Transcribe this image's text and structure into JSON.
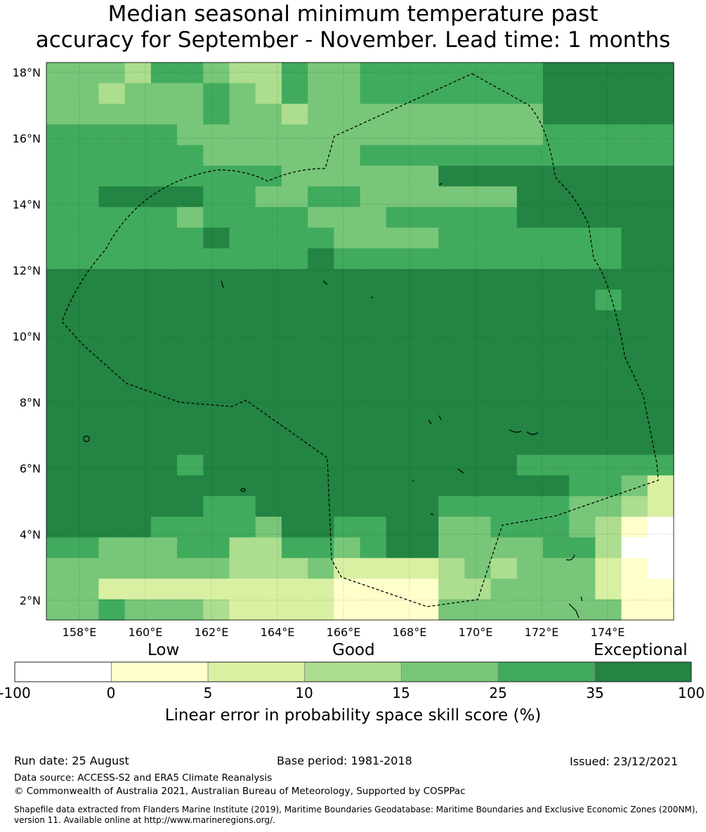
{
  "title_line1": "Median seasonal minimum temperature past",
  "title_line2": "accuracy for September - November. Lead time: 1 months",
  "map": {
    "lat_labels": [
      "18°N",
      "16°N",
      "14°N",
      "12°N",
      "10°N",
      "8°N",
      "6°N",
      "4°N",
      "2°N"
    ],
    "lat_values": [
      18,
      16,
      14,
      12,
      10,
      8,
      6,
      4,
      2
    ],
    "lon_labels": [
      "158°E",
      "160°E",
      "162°E",
      "164°E",
      "166°E",
      "168°E",
      "170°E",
      "172°E",
      "174°E"
    ],
    "lon_values": [
      158,
      160,
      162,
      164,
      166,
      168,
      170,
      172,
      174
    ],
    "lon_range": [
      157,
      176
    ],
    "lat_range": [
      1.4,
      18.3
    ],
    "cell_degrees": 0.83,
    "colors": [
      "#ffffff",
      "#ffffcc",
      "#d9f0a3",
      "#addd8e",
      "#78c679",
      "#41ab5d",
      "#238443"
    ],
    "grid": [
      "444355433544555555566666",
      "443444543544555555566666",
      "444444544344444444466666",
      "555554444444444444455555",
      "555555444444555555555555",
      "555555555444444666666666",
      "556666554455444444666666",
      "555554555544455555666666",
      "555555655554444555555566",
      "555555555565555555555566",
      "666666666666666666666666",
      "666666666666666666666566",
      "666666666666666666666666",
      "666666666666666666666666",
      "666666666666666666666666",
      "666666666666666666666666",
      "666666666666666666666666",
      "666666666666666666666666",
      "666666666666666666666666",
      "666665666666666666555555",
      "666666666666666666665542",
      "666666556666666555554432",
      "666655554665566445554310",
      "554445533554566444455300",
      "444444433342222343444210",
      "442222222221111334444211",
      "445444322221111444444411"
    ]
  },
  "colorbar": {
    "words": [
      "Low",
      "Good",
      "Exceptional"
    ],
    "ticks": [
      "-100",
      "0",
      "5",
      "10",
      "15",
      "25",
      "35",
      "100"
    ],
    "label": "Linear error in probability space skill score (%)"
  },
  "footer": {
    "run_date": "Run date: 25 August",
    "base_period": "Base period: 1981-2018",
    "issued": "Issued: 23/12/2021",
    "data_source": "Data source: ACCESS-S2 and ERA5 Climate Reanalysis",
    "copyright": "© Commonwealth of Australia 2021, Australian Bureau of Meteorology, Supported by COSPPac",
    "shapefile_line1": "Shapefile data extracted from Flanders Marine Institute (2019), Maritime Boundaries Geodatabase: Maritime Boundaries and Exclusive Economic Zones (200NM),",
    "shapefile_line2": "version 11. Available online at http://www.marineregions.org/."
  }
}
